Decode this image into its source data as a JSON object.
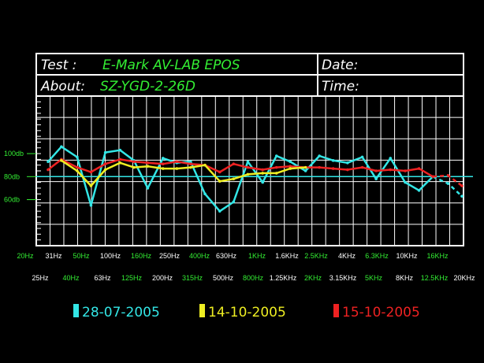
{
  "header": {
    "test_label": "Test :",
    "test_value": "E-Mark AV-LAB EPOS",
    "about_label": "About:",
    "about_value": "SZ-YGD-2-26D",
    "date_label": "Date:",
    "time_label": "Time:"
  },
  "chart_data": {
    "type": "line",
    "title": "",
    "xlabel": "",
    "ylabel": "",
    "ylim": [
      20,
      150
    ],
    "grid": true,
    "reference_line": 80,
    "y_ticks": [
      {
        "value": 100,
        "label": "100db"
      },
      {
        "value": 80,
        "label": "80db"
      },
      {
        "value": 60,
        "label": "60db"
      }
    ],
    "x_labels_top": [
      "20Hz",
      "31Hz",
      "50Hz",
      "100Hz",
      "160Hz",
      "250Hz",
      "400Hz",
      "630Hz",
      "1KHz",
      "1.6KHz",
      "2.5KHz",
      "4KHz",
      "6.3KHz",
      "10KHz",
      "16KHz"
    ],
    "x_labels_bottom": [
      "25Hz",
      "40Hz",
      "63Hz",
      "125Hz",
      "200Hz",
      "315Hz",
      "500Hz",
      "800Hz",
      "1.25KHz",
      "2KHz",
      "3.15KHz",
      "5KHz",
      "8KHz",
      "12.5KHz",
      "20KHz"
    ],
    "series": [
      {
        "name": "28-07-2005",
        "color": "#33e6e6",
        "x": [
          25,
          31,
          40,
          50,
          63,
          80,
          100,
          125,
          160,
          200,
          250,
          315,
          400,
          500,
          630,
          800,
          1000,
          1250,
          1600,
          2000,
          2500,
          3150,
          4000,
          5000,
          6300,
          8000,
          10000,
          12500,
          16000,
          20000
        ],
        "values": [
          93,
          106,
          97,
          55,
          101,
          103,
          94,
          70,
          96,
          92,
          93,
          65,
          50,
          58,
          93,
          75,
          98,
          93,
          85,
          98,
          94,
          92,
          97,
          78,
          96,
          75,
          68,
          80,
          74,
          63
        ]
      },
      {
        "name": "14-10-2005",
        "color": "#eeee22",
        "x": [
          31,
          40,
          50,
          63,
          80,
          100,
          125,
          160,
          200,
          250,
          315,
          400,
          500,
          630,
          800,
          1000,
          1250,
          1600
        ],
        "values": [
          94,
          85,
          72,
          86,
          92,
          88,
          89,
          87,
          87,
          88,
          90,
          76,
          78,
          82,
          83,
          83,
          87,
          88
        ]
      },
      {
        "name": "15-10-2005",
        "color": "#ee2222",
        "x": [
          25,
          31,
          40,
          50,
          63,
          80,
          100,
          125,
          160,
          200,
          250,
          315,
          400,
          500,
          630,
          800,
          1000,
          1250,
          1600,
          2000,
          2500,
          3150,
          4000,
          5000,
          6300,
          8000,
          10000,
          12500,
          16000,
          20000
        ],
        "values": [
          86,
          95,
          88,
          84,
          91,
          95,
          93,
          92,
          91,
          93,
          91,
          90,
          84,
          91,
          88,
          86,
          88,
          89,
          88,
          88,
          87,
          86,
          88,
          85,
          86,
          85,
          87,
          80,
          81,
          72
        ]
      }
    ],
    "legend_position": "bottom"
  }
}
